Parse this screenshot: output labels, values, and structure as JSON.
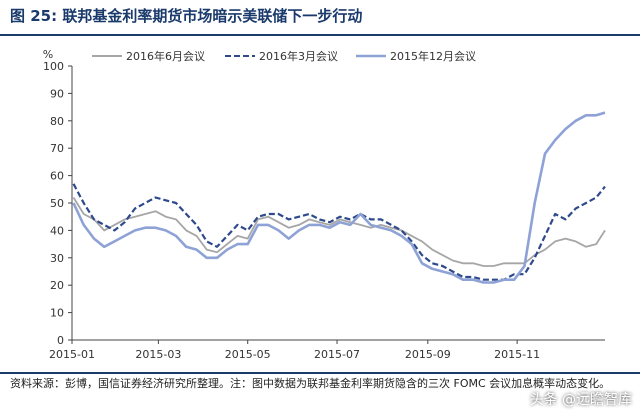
{
  "figure": {
    "title": "图 25:  联邦基金利率期货市场暗示美联储下一步行动",
    "source_note": "资料来源：彭博，国信证券经济研究所整理。注：图中数据为联邦基金利率期货隐含的三次 FOMC 会议加息概率动态变化。",
    "watermark": "头条 @远瞻智库"
  },
  "chart_data": {
    "type": "line",
    "title": "",
    "xlabel": "",
    "ylabel": "%",
    "ylim": [
      0,
      100
    ],
    "yticks": [
      0,
      10,
      20,
      30,
      40,
      50,
      60,
      70,
      80,
      90,
      100
    ],
    "xticks": [
      "2015-01",
      "2015-03",
      "2015-05",
      "2015-07",
      "2015-09",
      "2015-11"
    ],
    "x": [
      "2015-01-02",
      "2015-01-09",
      "2015-01-16",
      "2015-01-23",
      "2015-01-30",
      "2015-02-06",
      "2015-02-13",
      "2015-02-20",
      "2015-02-27",
      "2015-03-06",
      "2015-03-13",
      "2015-03-20",
      "2015-03-27",
      "2015-04-03",
      "2015-04-10",
      "2015-04-17",
      "2015-04-24",
      "2015-05-01",
      "2015-05-08",
      "2015-05-15",
      "2015-05-22",
      "2015-05-29",
      "2015-06-05",
      "2015-06-12",
      "2015-06-19",
      "2015-06-26",
      "2015-07-03",
      "2015-07-10",
      "2015-07-17",
      "2015-07-24",
      "2015-07-31",
      "2015-08-07",
      "2015-08-14",
      "2015-08-21",
      "2015-08-28",
      "2015-09-04",
      "2015-09-11",
      "2015-09-18",
      "2015-09-25",
      "2015-10-02",
      "2015-10-09",
      "2015-10-16",
      "2015-10-23",
      "2015-10-30",
      "2015-11-06",
      "2015-11-13",
      "2015-11-20",
      "2015-11-27",
      "2015-12-04",
      "2015-12-11",
      "2015-12-18",
      "2015-12-25",
      "2015-12-31"
    ],
    "series": [
      {
        "name": "2016年6月会议",
        "color": "#a6a6a6",
        "dash": "solid",
        "values": [
          52,
          46,
          44,
          40,
          42,
          44,
          45,
          46,
          47,
          45,
          44,
          40,
          38,
          33,
          32,
          35,
          38,
          37,
          44,
          45,
          43,
          41,
          42,
          44,
          43,
          42,
          44,
          43,
          42,
          41,
          42,
          41,
          40,
          38,
          36,
          33,
          31,
          29,
          28,
          28,
          27,
          27,
          28,
          28,
          28,
          31,
          33,
          36,
          37,
          36,
          34,
          35,
          40
        ]
      },
      {
        "name": "2016年3月会议",
        "color": "#2e4a8c",
        "dash": "dashed",
        "values": [
          57,
          50,
          44,
          42,
          40,
          43,
          48,
          50,
          52,
          51,
          50,
          46,
          42,
          36,
          34,
          38,
          42,
          40,
          45,
          46,
          46,
          44,
          45,
          46,
          44,
          43,
          45,
          44,
          46,
          44,
          44,
          42,
          40,
          36,
          31,
          28,
          27,
          25,
          23,
          23,
          22,
          22,
          22,
          24,
          24,
          30,
          38,
          46,
          44,
          48,
          50,
          52,
          56
        ]
      },
      {
        "name": "2015年12月会议",
        "color": "#8ea2d6",
        "dash": "solid",
        "values": [
          50,
          42,
          37,
          34,
          36,
          38,
          40,
          41,
          41,
          40,
          38,
          34,
          33,
          30,
          30,
          33,
          35,
          35,
          42,
          42,
          40,
          37,
          40,
          42,
          42,
          41,
          43,
          42,
          46,
          42,
          41,
          40,
          38,
          35,
          28,
          26,
          25,
          24,
          22,
          22,
          21,
          21,
          22,
          22,
          27,
          50,
          68,
          73,
          77,
          80,
          82,
          82,
          83
        ]
      }
    ],
    "legend": {
      "placement": "top"
    },
    "grid": false
  }
}
